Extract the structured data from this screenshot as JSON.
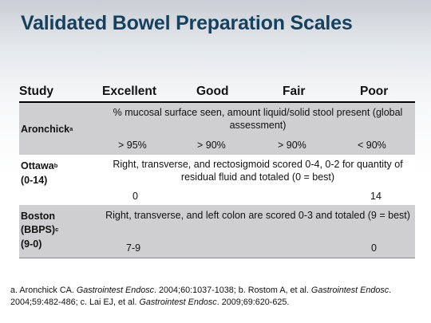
{
  "title": "Validated Bowel Preparation Scales",
  "table": {
    "headers": [
      "Study",
      "Excellent",
      "Good",
      "Fair",
      "Poor"
    ],
    "rows": [
      {
        "study": "Aronchick",
        "study_sup": "a",
        "description": "% mucosal surface seen, amount liquid/solid stool present (global assessment)",
        "values": [
          "> 95%",
          "> 90%",
          "> 90%",
          "< 90%"
        ]
      },
      {
        "study": "Ottawa",
        "study_sup": "b",
        "study_range": "(0-14)",
        "description": "Right, transverse, and rectosigmoid scored 0-4, 0-2 for quantity of residual fluid and totaled (0 = best)",
        "values": [
          "0",
          "14"
        ]
      },
      {
        "study": "Boston",
        "study_line2": "(BBPS)",
        "study_sup": "c",
        "study_range": "(9-0)",
        "description": "Right, transverse, and left colon are scored  0-3 and totaled (9 = best)",
        "values": [
          "7-9",
          "0"
        ]
      }
    ]
  },
  "footnote": {
    "a_prefix": "a. Aronchick CA. ",
    "a_journal": "Gastrointest Endosc",
    "a_cite": ". 2004;60:1037-1038; b. Rostom  A, et al. ",
    "b_journal": "Gastrointest Endosc",
    "b_cite": ". 2004;59:482-486; c. Lai EJ, et al. ",
    "c_journal": "Gastrointest Endosc",
    "c_cite": ". 2009;69:620-625."
  },
  "colors": {
    "title": "#17405e",
    "band_gray": "#cfcfd1"
  }
}
